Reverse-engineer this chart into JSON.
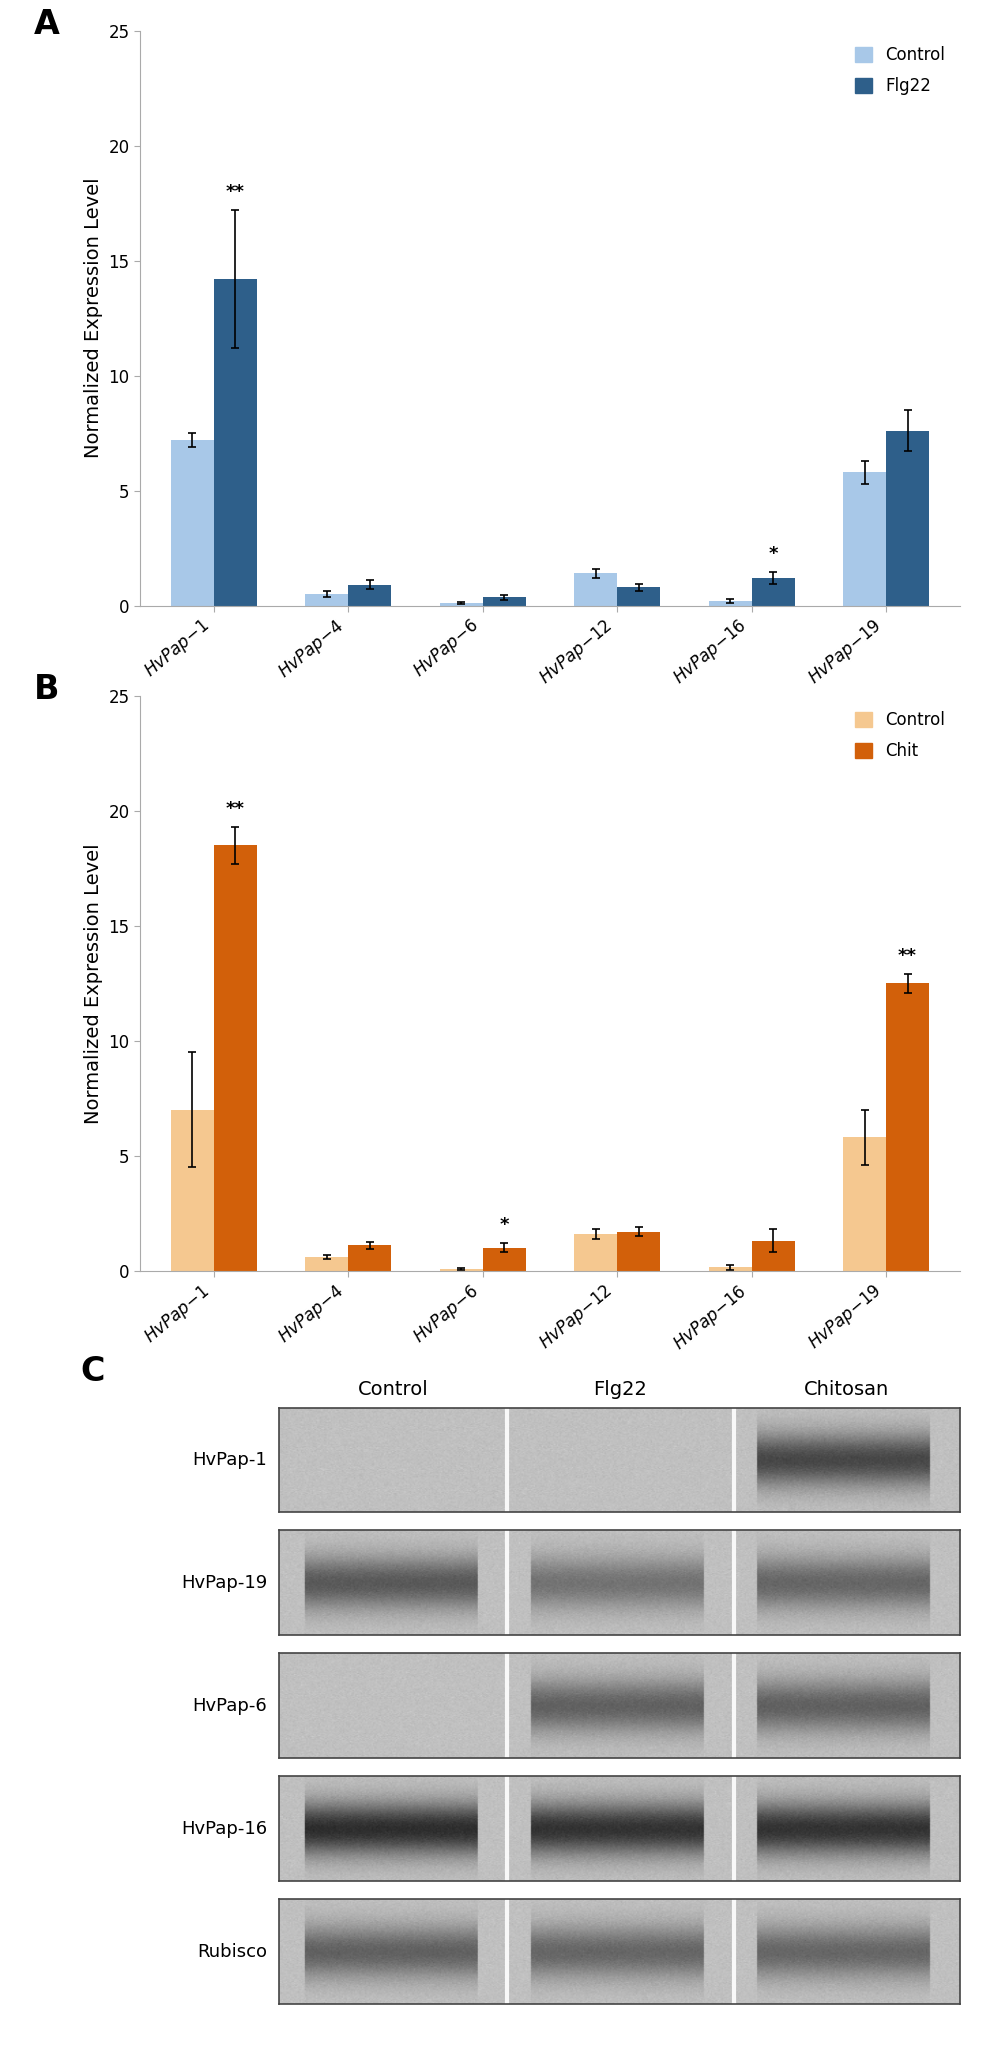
{
  "panel_A": {
    "categories": [
      "HvPap-1",
      "HvPap-4",
      "HvPap-6",
      "HvPap-12",
      "HvPap-16",
      "HvPap-19"
    ],
    "control_values": [
      7.2,
      0.5,
      0.1,
      1.4,
      0.2,
      5.8
    ],
    "treatment_values": [
      14.2,
      0.9,
      0.35,
      0.8,
      1.2,
      7.6
    ],
    "control_errors": [
      0.3,
      0.15,
      0.05,
      0.2,
      0.1,
      0.5
    ],
    "treatment_errors": [
      3.0,
      0.2,
      0.1,
      0.15,
      0.25,
      0.9
    ],
    "control_color": "#A8C8E8",
    "treatment_color": "#2E5F8A",
    "ylabel": "Normalized Expression Level",
    "ylim": [
      0,
      25
    ],
    "yticks": [
      0,
      5,
      10,
      15,
      20,
      25
    ],
    "legend_control": "Control",
    "legend_treatment": "Flg22",
    "significance": {
      "HvPap-1": "**",
      "HvPap-16": "*"
    }
  },
  "panel_B": {
    "categories": [
      "HvPap-1",
      "HvPap-4",
      "HvPap-6",
      "HvPap-12",
      "HvPap-16",
      "HvPap-19"
    ],
    "control_values": [
      7.0,
      0.6,
      0.08,
      1.6,
      0.15,
      5.8
    ],
    "treatment_values": [
      18.5,
      1.1,
      1.0,
      1.7,
      1.3,
      12.5
    ],
    "control_errors": [
      2.5,
      0.1,
      0.03,
      0.2,
      0.1,
      1.2
    ],
    "treatment_errors": [
      0.8,
      0.15,
      0.2,
      0.2,
      0.5,
      0.4
    ],
    "control_color": "#F5C890",
    "treatment_color": "#D2600A",
    "ylabel": "Normalized Expression Level",
    "ylim": [
      0,
      25
    ],
    "yticks": [
      0,
      5,
      10,
      15,
      20,
      25
    ],
    "legend_control": "Control",
    "legend_treatment": "Chit",
    "significance": {
      "HvPap-1": "**",
      "HvPap-6": "*",
      "HvPap-19": "**"
    }
  },
  "panel_C": {
    "labels": [
      "HvPap-1",
      "HvPap-19",
      "HvPap-6",
      "HvPap-16",
      "Rubisco"
    ],
    "col_labels": [
      "Control",
      "Flg22",
      "Chitosan"
    ],
    "band_intensities": {
      "HvPap-1": [
        0.92,
        0.88,
        0.28
      ],
      "HvPap-19": [
        0.35,
        0.45,
        0.4
      ],
      "HvPap-6": [
        0.9,
        0.38,
        0.38
      ],
      "HvPap-16": [
        0.18,
        0.2,
        0.2
      ],
      "Rubisco": [
        0.38,
        0.4,
        0.4
      ]
    },
    "bg_level": 0.75
  },
  "figure_bg": "#FFFFFF",
  "label_fontsize": 14,
  "tick_fontsize": 12,
  "legend_fontsize": 12,
  "bar_width": 0.32
}
